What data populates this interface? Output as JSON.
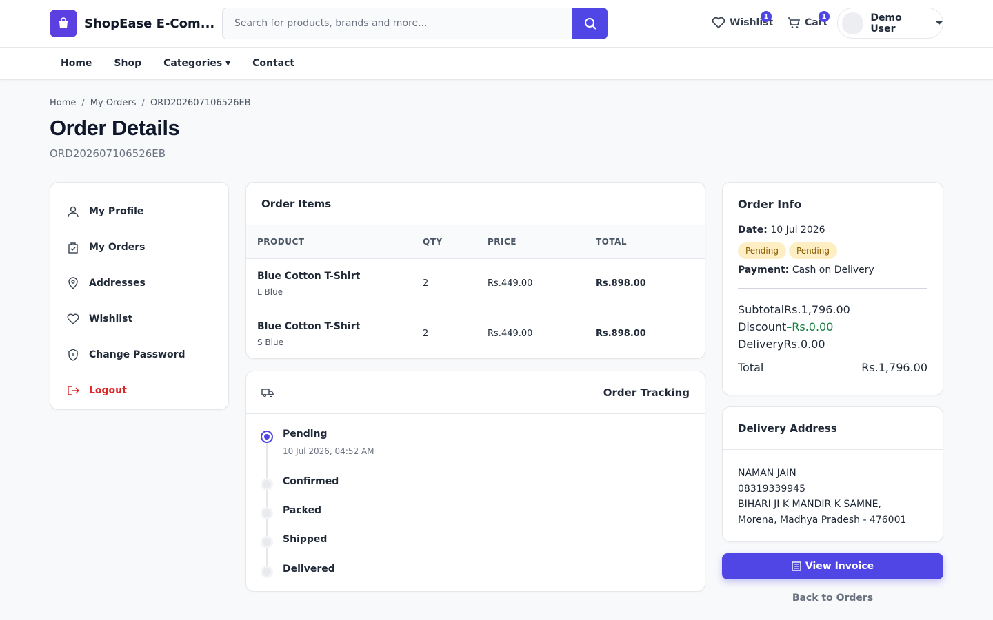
{
  "header": {
    "brand": "ShopEase E-Com...",
    "search_placeholder": "Search for products, brands and more...",
    "wishlist": "Wishlist",
    "wishlist_count": "1",
    "cart": "Cart",
    "cart_count": "1",
    "user": "Demo User"
  },
  "nav": [
    "Home",
    "Shop",
    "Categories",
    "Contact"
  ],
  "breadcrumb": [
    "Home",
    "My Orders",
    "ORD202607106526EB"
  ],
  "page": {
    "title": "Order Details",
    "order_id": "ORD202607106526EB"
  },
  "sidebar": [
    "My Profile",
    "My Orders",
    "Addresses",
    "Wishlist",
    "Change Password",
    "Logout"
  ],
  "items": {
    "title": "Order Items",
    "columns": [
      "PRODUCT",
      "QTY",
      "PRICE",
      "TOTAL"
    ],
    "rows": [
      {
        "name": "Blue Cotton T-Shirt",
        "variant": "L Blue",
        "qty": 2,
        "price": "Rs.449.00",
        "total": "Rs.898.00"
      },
      {
        "name": "Blue Cotton T-Shirt",
        "variant": "S Blue",
        "qty": 2,
        "price": "Rs.449.00",
        "total": "Rs.898.00"
      }
    ]
  },
  "tracking": {
    "title": "Order Tracking",
    "steps": [
      {
        "label": "Pending",
        "time": "10 Jul 2026, 04:52 AM"
      },
      {
        "label": "Confirmed"
      },
      {
        "label": "Packed"
      },
      {
        "label": "Shipped"
      },
      {
        "label": "Delivered"
      }
    ]
  },
  "order_info": {
    "title": "Order Info",
    "date_label": "Date:",
    "date": "10 Jul 2026",
    "badges": [
      "Pending",
      "Pending"
    ],
    "payment_label": "Payment:",
    "payment": "Cash on Delivery",
    "subtotal_label": "Subtotal",
    "subtotal": "Rs.1,796.00",
    "discount_label": "Discount",
    "discount": "–Rs.0.00",
    "delivery_label": "Delivery",
    "delivery": "Rs.0.00",
    "total_label": "Total",
    "total": "Rs.1,796.00"
  },
  "address": {
    "title": "Delivery Address",
    "lines": [
      "NAMAN JAIN",
      "08319339945",
      "BIHARI JI K MANDIR K SAMNE,",
      "Morena, Madhya Pradesh - 476001"
    ]
  },
  "actions": {
    "invoice": "View Invoice",
    "back": "Back to Orders"
  }
}
